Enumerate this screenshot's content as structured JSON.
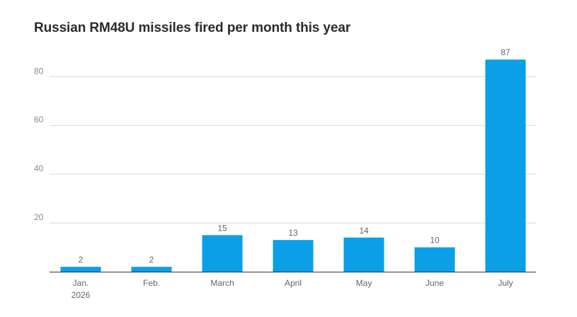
{
  "chart_data": {
    "type": "bar",
    "title": "Russian RM48U missiles fired per month this year",
    "xlabel": "",
    "ylabel": "",
    "categories": [
      [
        "Jan.",
        "2026"
      ],
      [
        "Feb."
      ],
      [
        "March"
      ],
      [
        "April"
      ],
      [
        "May"
      ],
      [
        "June"
      ],
      [
        "July"
      ]
    ],
    "values": [
      2,
      2,
      15,
      13,
      14,
      10,
      87
    ],
    "data_labels": [
      "2",
      "2",
      "15",
      "13",
      "14",
      "10",
      "87"
    ],
    "ylim": [
      0,
      87
    ],
    "yticks": [
      20,
      40,
      60,
      80
    ],
    "ytick_labels": [
      "20",
      "40",
      "60",
      "80"
    ],
    "grid": "horizontal",
    "legend": "none",
    "colors": {
      "bar": "#0a9fe6",
      "grid": "#d9d9d9",
      "axis": "#333333"
    }
  }
}
